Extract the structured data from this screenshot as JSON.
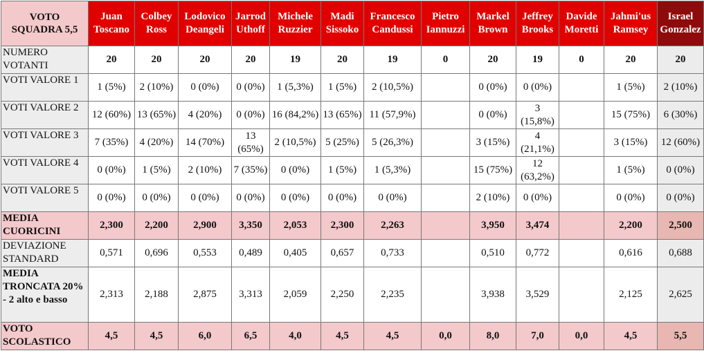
{
  "corner_label": "VOTO SQUADRA 5,5",
  "players": [
    "Juan Toscano",
    "Colbey Ross",
    "Lodovico Deangeli",
    "Jarrod Uthoff",
    "Michele Ruzzier",
    "Madi Sissoko",
    "Francesco Candussi",
    "Pietro Iannuzzi",
    "Markel Brown",
    "Jeffrey Brooks",
    "Davide Moretti",
    "Jahmi'us Ramsey",
    "Israel Gonzalez"
  ],
  "rows": [
    {
      "label": "NUMERO VOTANTI",
      "bold_label": false,
      "bold_values": true,
      "highlight": false,
      "values": [
        "20",
        "20",
        "20",
        "20",
        "19",
        "20",
        "19",
        "0",
        "20",
        "19",
        "0",
        "20",
        "20"
      ]
    },
    {
      "label": "VOTI VALORE 1",
      "bold_label": false,
      "bold_values": false,
      "highlight": false,
      "values": [
        "1 (5%)",
        "2 (10%)",
        "0 (0%)",
        "0 (0%)",
        "1 (5,3%)",
        "1 (5%)",
        "2 (10,5%)",
        "",
        "0 (0%)",
        "0 (0%)",
        "",
        "1 (5%)",
        "2 (10%)"
      ]
    },
    {
      "label": "VOTI VALORE 2",
      "bold_label": false,
      "bold_values": false,
      "highlight": false,
      "values": [
        "12 (60%)",
        "13 (65%)",
        "4 (20%)",
        "0 (0%)",
        "16 (84,2%)",
        "13 (65%)",
        "11 (57,9%)",
        "",
        "0 (0%)",
        "3 (15,8%)",
        "",
        "15 (75%)",
        "6 (30%)"
      ]
    },
    {
      "label": "VOTI VALORE 3",
      "bold_label": false,
      "bold_values": false,
      "highlight": false,
      "values": [
        "7 (35%)",
        "4 (20%)",
        "14 (70%)",
        "13 (65%)",
        "2 (10,5%)",
        "5 (25%)",
        "5 (26,3%)",
        "",
        "3 (15%)",
        "4 (21,1%)",
        "",
        "3 (15%)",
        "12 (60%)"
      ]
    },
    {
      "label": "VOTI VALORE 4",
      "bold_label": false,
      "bold_values": false,
      "highlight": false,
      "values": [
        "0 (0%)",
        "1 (5%)",
        "2 (10%)",
        "7 (35%)",
        "0 (0%)",
        "1 (5%)",
        "1 (5,3%)",
        "",
        "15 (75%)",
        "12 (63,2%)",
        "",
        "1 (5%)",
        "0 (0%)"
      ]
    },
    {
      "label": "VOTI VALORE 5",
      "bold_label": false,
      "bold_values": false,
      "highlight": false,
      "values": [
        "0 (0%)",
        "0 (0%)",
        "0 (0%)",
        "0 (0%)",
        "0 (0%)",
        "0 (0%)",
        "0 (0%)",
        "",
        "2 (10%)",
        "0 (0%)",
        "",
        "0 (0%)",
        "0 (0%)"
      ]
    },
    {
      "label": "MEDIA CUORICINI",
      "bold_label": true,
      "bold_values": true,
      "highlight": true,
      "values": [
        "2,300",
        "2,200",
        "2,900",
        "3,350",
        "2,053",
        "2,300",
        "2,263",
        "",
        "3,950",
        "3,474",
        "",
        "2,200",
        "2,500"
      ]
    },
    {
      "label": "DEVIAZIONE STANDARD",
      "bold_label": false,
      "bold_values": false,
      "highlight": false,
      "values": [
        "0,571",
        "0,696",
        "0,553",
        "0,489",
        "0,405",
        "0,657",
        "0,733",
        "",
        "0,510",
        "0,772",
        "",
        "0,616",
        "0,688"
      ]
    },
    {
      "label": "MEDIA TRONCATA 20% - 2 alto e basso",
      "bold_label": true,
      "bold_values": false,
      "highlight": false,
      "values": [
        "2,313",
        "2,188",
        "2,875",
        "3,313",
        "2,059",
        "2,250",
        "2,235",
        "",
        "3,938",
        "3,529",
        "",
        "2,125",
        "2,625"
      ]
    },
    {
      "label": "VOTO SCOLASTICO",
      "bold_label": true,
      "bold_values": true,
      "highlight": true,
      "values": [
        "4,5",
        "4,5",
        "6,0",
        "6,5",
        "4,0",
        "4,5",
        "4,5",
        "0,0",
        "8,0",
        "7,0",
        "0,0",
        "4,5",
        "5,5"
      ]
    }
  ]
}
